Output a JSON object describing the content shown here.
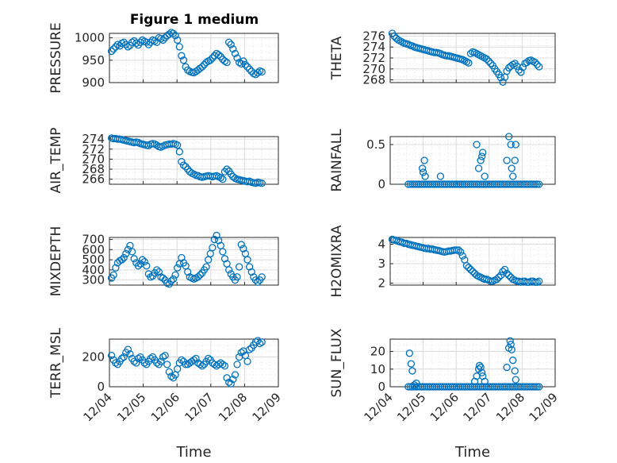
{
  "figure": {
    "title": "Figure 1 medium",
    "marker_color": "#0072BD"
  },
  "chart_data": [
    {
      "type": "scatter",
      "name": "pressure",
      "ylabel": "PRESSURE",
      "xlabel": "",
      "title": "Figure 1 medium",
      "ylim": [
        900,
        1010
      ],
      "yticks": [
        900,
        950,
        1000
      ],
      "xlim": [
        0,
        4.1
      ],
      "grid": true,
      "x": [
        0.05,
        0.1,
        0.15,
        0.2,
        0.25,
        0.3,
        0.35,
        0.4,
        0.45,
        0.5,
        0.55,
        0.6,
        0.65,
        0.7,
        0.75,
        0.8,
        0.85,
        0.9,
        0.95,
        1.0,
        1.05,
        1.1,
        1.15,
        1.2,
        1.25,
        1.3,
        1.35,
        1.4,
        1.45,
        1.5,
        1.55,
        1.6,
        1.65,
        1.7,
        1.75,
        1.8,
        1.85,
        1.9,
        1.95,
        2.0,
        2.05,
        2.1,
        2.15,
        2.2,
        2.25,
        2.3,
        2.35,
        2.4,
        2.45,
        2.5,
        2.55,
        2.6,
        2.65,
        2.7,
        2.75,
        2.8,
        2.85,
        2.9,
        2.95,
        3.0,
        3.05,
        3.1,
        3.15,
        3.2,
        3.25,
        3.3,
        3.35,
        3.4,
        3.45,
        3.5,
        3.55,
        3.6,
        3.65,
        3.7
      ],
      "y": [
        970,
        975,
        980,
        985,
        982,
        988,
        990,
        985,
        980,
        983,
        990,
        993,
        988,
        984,
        990,
        995,
        992,
        990,
        985,
        990,
        995,
        993,
        990,
        1000,
        998,
        995,
        1000,
        1005,
        1008,
        1012,
        1010,
        1005,
        995,
        980,
        960,
        950,
        935,
        928,
        925,
        923,
        922,
        925,
        928,
        932,
        935,
        940,
        945,
        948,
        950,
        955,
        960,
        965,
        962,
        958,
        952,
        948,
        945,
        990,
        985,
        975,
        965,
        955,
        945,
        942,
        948,
        940,
        935,
        930,
        925,
        920,
        918,
        922,
        926,
        924
      ]
    },
    {
      "type": "scatter",
      "name": "theta",
      "ylabel": "THETA",
      "xlabel": "",
      "ylim": [
        267.5,
        276.5
      ],
      "yticks": [
        268,
        270,
        272,
        274,
        276
      ],
      "xlim": [
        0,
        4.1
      ],
      "grid": true,
      "x": [
        0.05,
        0.1,
        0.15,
        0.2,
        0.25,
        0.3,
        0.35,
        0.4,
        0.45,
        0.5,
        0.55,
        0.6,
        0.65,
        0.7,
        0.75,
        0.8,
        0.85,
        0.9,
        0.95,
        1.0,
        1.05,
        1.1,
        1.15,
        1.2,
        1.25,
        1.3,
        1.35,
        1.4,
        1.45,
        1.5,
        1.55,
        1.6,
        1.65,
        1.7,
        1.75,
        1.8,
        1.85,
        1.9,
        1.95,
        2.0,
        2.05,
        2.1,
        2.15,
        2.2,
        2.25,
        2.3,
        2.35,
        2.4,
        2.45,
        2.5,
        2.55,
        2.6,
        2.65,
        2.7,
        2.75,
        2.8,
        2.85,
        2.9,
        2.95,
        3.0,
        3.05,
        3.1,
        3.15,
        3.2,
        3.25,
        3.3,
        3.35,
        3.4,
        3.45,
        3.5,
        3.55,
        3.6,
        3.65,
        3.7
      ],
      "y": [
        276.5,
        276,
        275.6,
        275.3,
        275.1,
        274.9,
        274.7,
        274.6,
        274.5,
        274.3,
        274.2,
        274.0,
        273.9,
        273.8,
        273.7,
        273.6,
        273.5,
        273.4,
        273.3,
        273.2,
        273.1,
        273.0,
        273.0,
        272.9,
        272.8,
        272.6,
        272.5,
        272.4,
        272.4,
        272.3,
        272.2,
        272.1,
        272.0,
        271.9,
        271.8,
        271.7,
        271.5,
        271.3,
        271.1,
        272.8,
        273.1,
        273.0,
        272.8,
        272.6,
        272.4,
        272.2,
        272.0,
        271.8,
        271.4,
        271.0,
        270.6,
        270.0,
        269.5,
        269.0,
        268.4,
        267.6,
        268.5,
        269.6,
        270.2,
        270.5,
        270.8,
        271.0,
        270.5,
        269.8,
        269.4,
        270.3,
        271.0,
        271.2,
        271.5,
        271.6,
        271.4,
        271.2,
        270.8,
        270.4
      ]
    },
    {
      "type": "scatter",
      "name": "air_temp",
      "ylabel": "AIR_TEMP",
      "xlabel": "",
      "ylim": [
        265,
        274.5
      ],
      "yticks": [
        266,
        268,
        270,
        272,
        274
      ],
      "xlim": [
        0,
        4.1
      ],
      "grid": true,
      "x": [
        0.05,
        0.1,
        0.15,
        0.2,
        0.25,
        0.3,
        0.35,
        0.4,
        0.45,
        0.5,
        0.55,
        0.6,
        0.65,
        0.7,
        0.75,
        0.8,
        0.85,
        0.9,
        0.95,
        1.0,
        1.05,
        1.1,
        1.15,
        1.2,
        1.25,
        1.3,
        1.35,
        1.4,
        1.45,
        1.5,
        1.55,
        1.6,
        1.65,
        1.7,
        1.75,
        1.8,
        1.85,
        1.9,
        1.95,
        2.0,
        2.05,
        2.1,
        2.15,
        2.2,
        2.25,
        2.3,
        2.35,
        2.4,
        2.45,
        2.5,
        2.55,
        2.6,
        2.65,
        2.7,
        2.75,
        2.8,
        2.85,
        2.9,
        2.95,
        3.0,
        3.05,
        3.1,
        3.15,
        3.2,
        3.25,
        3.3,
        3.35,
        3.4,
        3.45,
        3.5,
        3.55,
        3.6,
        3.65,
        3.7
      ],
      "y": [
        274.2,
        274.1,
        274.1,
        274.0,
        274.0,
        273.9,
        273.8,
        273.7,
        273.6,
        273.5,
        273.4,
        273.3,
        273.4,
        273.3,
        273.1,
        273.0,
        272.9,
        272.8,
        272.7,
        273.0,
        273.1,
        273.0,
        272.8,
        272.5,
        272.4,
        272.6,
        272.8,
        272.9,
        273.0,
        273.0,
        273.1,
        273.0,
        272.8,
        271.5,
        269.5,
        268.8,
        268.5,
        268.0,
        267.5,
        267.2,
        267.0,
        266.8,
        266.7,
        266.5,
        266.4,
        266.5,
        266.6,
        266.7,
        266.6,
        266.5,
        266.6,
        266.7,
        266.5,
        266.3,
        266.0,
        267.5,
        268.0,
        267.6,
        267.0,
        266.5,
        266.2,
        266.0,
        265.9,
        265.8,
        265.7,
        265.6,
        265.5,
        265.6,
        265.4,
        265.3,
        265.2,
        265.4,
        265.3,
        265.2
      ]
    },
    {
      "type": "scatter",
      "name": "rainfall",
      "ylabel": "RAINFALL",
      "xlabel": "",
      "ylim": [
        0,
        0.6
      ],
      "yticks": [
        0,
        0.5
      ],
      "xlim": [
        0,
        4.1
      ],
      "grid": true,
      "x": [
        0.45,
        0.5,
        0.55,
        0.6,
        0.65,
        0.7,
        0.75,
        0.8,
        0.85,
        0.9,
        0.95,
        1.0,
        1.05,
        1.1,
        1.15,
        1.2,
        1.25,
        1.3,
        1.35,
        1.4,
        1.45,
        1.5,
        1.55,
        1.6,
        1.65,
        1.7,
        1.75,
        1.8,
        1.85,
        1.9,
        1.95,
        2.0,
        2.05,
        2.1,
        2.15,
        2.2,
        2.25,
        2.3,
        2.35,
        2.4,
        2.45,
        2.5,
        2.55,
        2.6,
        2.65,
        2.7,
        2.75,
        2.8,
        2.85,
        2.9,
        2.95,
        3.0,
        3.05,
        3.1,
        3.15,
        3.2,
        3.25,
        3.3,
        3.35,
        3.4,
        3.45,
        3.5,
        3.55,
        3.6,
        3.65,
        3.7,
        0.8,
        0.85,
        0.87,
        0.82,
        1.25,
        2.15,
        2.2,
        2.25,
        2.28,
        2.3,
        2.35,
        2.9,
        2.95,
        3.0,
        3.02,
        3.05,
        3.1,
        3.12
      ],
      "y": [
        0,
        0,
        0,
        0,
        0,
        0,
        0,
        0,
        0,
        0,
        0,
        0,
        0,
        0,
        0,
        0,
        0,
        0,
        0,
        0,
        0,
        0,
        0,
        0,
        0,
        0,
        0,
        0,
        0,
        0,
        0,
        0,
        0,
        0,
        0,
        0,
        0,
        0,
        0,
        0,
        0,
        0,
        0,
        0,
        0,
        0,
        0,
        0,
        0,
        0,
        0,
        0,
        0,
        0,
        0,
        0,
        0,
        0,
        0,
        0,
        0,
        0,
        0,
        0,
        0,
        0,
        0.2,
        0.3,
        0.1,
        0.15,
        0.1,
        0.5,
        0.2,
        0.3,
        0.35,
        0.4,
        0.1,
        0.3,
        0.6,
        0.5,
        0.2,
        0.1,
        0.3,
        0.5
      ]
    },
    {
      "type": "scatter",
      "name": "mixdepth",
      "ylabel": "MIXDEPTH",
      "xlabel": "",
      "ylim": [
        250,
        720
      ],
      "yticks": [
        300,
        400,
        500,
        600,
        700
      ],
      "xlim": [
        0,
        4.1
      ],
      "grid": true,
      "x": [
        0.05,
        0.1,
        0.15,
        0.2,
        0.25,
        0.3,
        0.35,
        0.4,
        0.45,
        0.5,
        0.55,
        0.6,
        0.65,
        0.7,
        0.75,
        0.8,
        0.85,
        0.9,
        0.95,
        1.0,
        1.05,
        1.1,
        1.15,
        1.2,
        1.25,
        1.3,
        1.35,
        1.4,
        1.45,
        1.5,
        1.55,
        1.6,
        1.65,
        1.7,
        1.75,
        1.8,
        1.85,
        1.9,
        1.95,
        2.0,
        2.05,
        2.1,
        2.15,
        2.2,
        2.25,
        2.3,
        2.35,
        2.4,
        2.45,
        2.5,
        2.55,
        2.6,
        2.65,
        2.7,
        2.75,
        2.8,
        2.85,
        2.9,
        2.95,
        3.0,
        3.05,
        3.1,
        3.15,
        3.2,
        3.25,
        3.3,
        3.35,
        3.4,
        3.45,
        3.5,
        3.55,
        3.6,
        3.65,
        3.7
      ],
      "y": [
        320,
        350,
        420,
        470,
        490,
        500,
        520,
        560,
        600,
        640,
        580,
        510,
        470,
        440,
        460,
        500,
        480,
        440,
        360,
        330,
        340,
        370,
        400,
        380,
        330,
        320,
        300,
        270,
        260,
        290,
        310,
        350,
        420,
        460,
        520,
        470,
        440,
        380,
        330,
        320,
        310,
        320,
        330,
        350,
        370,
        400,
        430,
        500,
        560,
        620,
        700,
        740,
        690,
        640,
        580,
        510,
        460,
        400,
        360,
        330,
        300,
        330,
        430,
        650,
        610,
        560,
        500,
        430,
        380,
        330,
        300,
        280,
        300,
        330
      ]
    },
    {
      "type": "scatter",
      "name": "h2omixra",
      "ylabel": "H2OMIXRA",
      "xlabel": "",
      "ylim": [
        1.9,
        4.35
      ],
      "yticks": [
        2,
        3,
        4
      ],
      "xlim": [
        0,
        4.1
      ],
      "grid": true,
      "x": [
        0.05,
        0.1,
        0.15,
        0.2,
        0.25,
        0.3,
        0.35,
        0.4,
        0.45,
        0.5,
        0.55,
        0.6,
        0.65,
        0.7,
        0.75,
        0.8,
        0.85,
        0.9,
        0.95,
        1.0,
        1.05,
        1.1,
        1.15,
        1.2,
        1.25,
        1.3,
        1.35,
        1.4,
        1.45,
        1.5,
        1.55,
        1.6,
        1.65,
        1.7,
        1.75,
        1.8,
        1.85,
        1.9,
        1.95,
        2.0,
        2.05,
        2.1,
        2.15,
        2.2,
        2.25,
        2.3,
        2.35,
        2.4,
        2.45,
        2.5,
        2.55,
        2.6,
        2.65,
        2.7,
        2.75,
        2.8,
        2.85,
        2.9,
        2.95,
        3.0,
        3.05,
        3.1,
        3.15,
        3.2,
        3.25,
        3.3,
        3.35,
        3.4,
        3.45,
        3.5,
        3.55,
        3.6,
        3.65,
        3.7
      ],
      "y": [
        4.25,
        4.22,
        4.2,
        4.15,
        4.12,
        4.1,
        4.05,
        4.05,
        4.0,
        3.98,
        3.95,
        3.93,
        3.9,
        3.88,
        3.85,
        3.83,
        3.8,
        3.78,
        3.78,
        3.75,
        3.75,
        3.72,
        3.7,
        3.68,
        3.65,
        3.62,
        3.6,
        3.62,
        3.65,
        3.65,
        3.68,
        3.7,
        3.7,
        3.7,
        3.6,
        3.4,
        3.2,
        2.9,
        2.8,
        2.7,
        2.6,
        2.5,
        2.4,
        2.35,
        2.3,
        2.25,
        2.2,
        2.2,
        2.15,
        2.1,
        2.1,
        2.15,
        2.2,
        2.3,
        2.4,
        2.6,
        2.7,
        2.5,
        2.4,
        2.3,
        2.2,
        2.15,
        2.1,
        2.1,
        2.05,
        2.1,
        2.1,
        2.05,
        2.05,
        2.1,
        2.1,
        2.05,
        2.05,
        2.1
      ]
    },
    {
      "type": "scatter",
      "name": "terr_msl",
      "ylabel": "TERR_MSL",
      "xlabel": "Time",
      "ylim": [
        0,
        320
      ],
      "yticks": [
        0,
        200
      ],
      "xlim": [
        0,
        4.1
      ],
      "xticks": [
        "12/04",
        "12/05",
        "12/06",
        "12/07",
        "12/08",
        "12/09"
      ],
      "grid": true,
      "x": [
        0.05,
        0.1,
        0.15,
        0.2,
        0.25,
        0.3,
        0.35,
        0.4,
        0.45,
        0.5,
        0.55,
        0.6,
        0.65,
        0.7,
        0.75,
        0.8,
        0.85,
        0.9,
        0.95,
        1.0,
        1.05,
        1.1,
        1.15,
        1.2,
        1.25,
        1.3,
        1.35,
        1.4,
        1.45,
        1.5,
        1.55,
        1.6,
        1.65,
        1.7,
        1.75,
        1.8,
        1.85,
        1.9,
        1.95,
        2.0,
        2.05,
        2.1,
        2.15,
        2.2,
        2.25,
        2.3,
        2.35,
        2.4,
        2.45,
        2.5,
        2.55,
        2.6,
        2.65,
        2.7,
        2.75,
        2.8,
        2.85,
        2.9,
        2.95,
        3.0,
        3.05,
        3.1,
        3.15,
        3.2,
        3.25,
        3.3,
        3.35,
        3.4,
        3.45,
        3.5,
        3.55,
        3.6,
        3.65,
        3.7
      ],
      "y": [
        210,
        180,
        160,
        150,
        170,
        190,
        200,
        230,
        250,
        220,
        190,
        170,
        160,
        190,
        200,
        180,
        160,
        150,
        170,
        190,
        200,
        180,
        160,
        150,
        170,
        200,
        210,
        150,
        100,
        70,
        60,
        80,
        120,
        160,
        180,
        170,
        150,
        150,
        160,
        170,
        180,
        190,
        160,
        150,
        140,
        150,
        170,
        190,
        180,
        160,
        150,
        140,
        150,
        160,
        150,
        140,
        60,
        30,
        20,
        50,
        80,
        150,
        200,
        230,
        240,
        210,
        170,
        250,
        260,
        280,
        300,
        310,
        290,
        300
      ]
    },
    {
      "type": "scatter",
      "name": "sun_flux",
      "ylabel": "SUN_FLUX",
      "xlabel": "Time",
      "ylim": [
        0,
        27
      ],
      "yticks": [
        0,
        10,
        20
      ],
      "xlim": [
        0,
        4.1
      ],
      "xticks": [
        "12/04",
        "12/05",
        "12/06",
        "12/07",
        "12/08",
        "12/09"
      ],
      "grid": true,
      "x": [
        0.45,
        0.5,
        0.55,
        0.6,
        0.65,
        0.7,
        0.75,
        0.8,
        0.85,
        0.9,
        0.95,
        1.0,
        1.05,
        1.1,
        1.15,
        1.2,
        1.25,
        1.3,
        1.35,
        1.4,
        1.45,
        1.5,
        1.55,
        1.6,
        1.65,
        1.7,
        1.75,
        1.8,
        1.85,
        1.9,
        1.95,
        2.0,
        2.05,
        2.1,
        2.15,
        2.2,
        2.25,
        2.3,
        2.35,
        2.4,
        2.45,
        2.5,
        2.55,
        2.6,
        2.65,
        2.7,
        2.75,
        2.8,
        2.85,
        2.9,
        2.95,
        3.0,
        3.05,
        3.1,
        3.15,
        3.2,
        3.25,
        3.3,
        3.35,
        3.4,
        3.45,
        3.5,
        3.55,
        3.6,
        3.65,
        3.7,
        0.48,
        0.52,
        0.55,
        0.6,
        0.65,
        2.1,
        2.15,
        2.2,
        2.22,
        2.25,
        2.28,
        2.3,
        2.35,
        2.9,
        2.95,
        2.98,
        3.0,
        3.02,
        3.05,
        3.1,
        3.12
      ],
      "y": [
        0,
        0,
        0,
        0,
        0,
        0,
        0,
        0,
        0,
        0,
        0,
        0,
        0,
        0,
        0,
        0,
        0,
        0,
        0,
        0,
        0,
        0,
        0,
        0,
        0,
        0,
        0,
        0,
        0,
        0,
        0,
        0,
        0,
        0,
        0,
        0,
        0,
        0,
        0,
        0,
        0,
        0,
        0,
        0,
        0,
        0,
        0,
        0,
        0,
        0,
        0,
        0,
        0,
        0,
        0,
        0,
        0,
        0,
        0,
        0,
        0,
        0,
        0,
        0,
        0,
        0,
        19,
        13,
        9,
        1,
        2,
        3,
        6,
        10,
        12,
        11,
        8,
        6,
        3,
        11,
        22,
        26,
        24,
        21,
        15,
        9,
        4
      ]
    }
  ]
}
